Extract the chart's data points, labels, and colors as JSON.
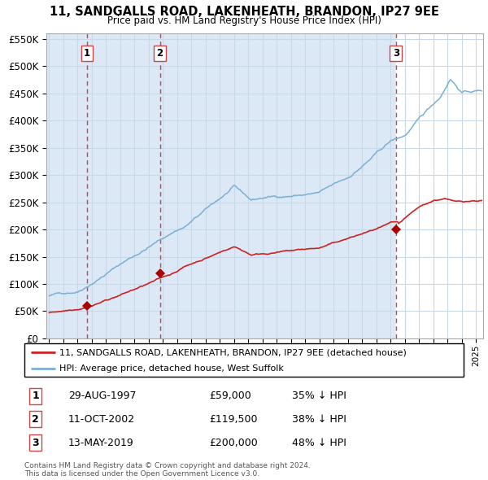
{
  "title": "11, SANDGALLS ROAD, LAKENHEATH, BRANDON, IP27 9EE",
  "subtitle": "Price paid vs. HM Land Registry's House Price Index (HPI)",
  "footer": "Contains HM Land Registry data © Crown copyright and database right 2024.\nThis data is licensed under the Open Government Licence v3.0.",
  "legend_line1": "11, SANDGALLS ROAD, LAKENHEATH, BRANDON, IP27 9EE (detached house)",
  "legend_line2": "HPI: Average price, detached house, West Suffolk",
  "transactions": [
    {
      "num": 1,
      "date": "29-AUG-1997",
      "price": 59000,
      "pct": "35%",
      "dir": "↓",
      "x_year": 1997.66
    },
    {
      "num": 2,
      "date": "11-OCT-2002",
      "price": 119500,
      "pct": "38%",
      "dir": "↓",
      "x_year": 2002.78
    },
    {
      "num": 3,
      "date": "13-MAY-2019",
      "price": 200000,
      "pct": "48%",
      "dir": "↓",
      "x_year": 2019.37
    }
  ],
  "hpi_line_color": "#7ab0d4",
  "price_color": "#cc2222",
  "marker_color": "#aa0000",
  "vline_color": "#cc4444",
  "bg_shaded": "#dce8f5",
  "bg_white": "#ffffff",
  "grid_color": "#c8d8e8",
  "ylim": [
    0,
    560000
  ],
  "xlim_start": 1994.8,
  "xlim_end": 2025.5,
  "xlabel": "",
  "ylabel": ""
}
